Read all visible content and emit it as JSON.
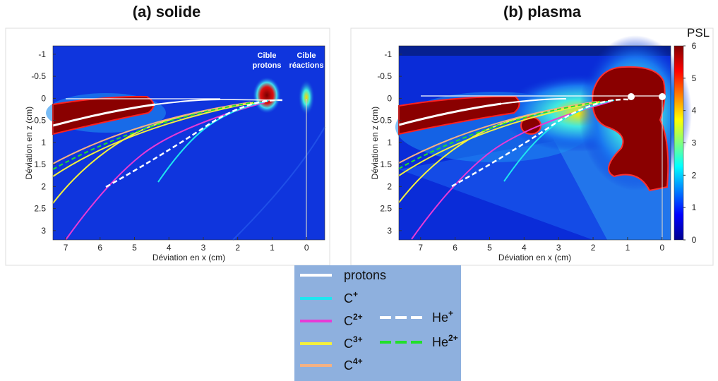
{
  "panels": [
    {
      "title": "(a) solide",
      "xlabel": "Déviation en x (cm)",
      "ylabel": "Déviation en z (cm)",
      "xlim": [
        7.37,
        -0.53
      ],
      "ylim": [
        -1.19,
        3.21
      ],
      "xticks": [
        7,
        6,
        5,
        4,
        3,
        2,
        1,
        0
      ],
      "yticks": [
        -1,
        -0.5,
        0,
        0.5,
        1,
        1.5,
        2,
        2.5,
        3
      ],
      "annotations": [
        [
          "Cible",
          "protons"
        ],
        [
          "Cible",
          "réactions"
        ]
      ]
    },
    {
      "title": "(b) plasma",
      "xlabel": "Déviation en x (cm)",
      "ylabel": "Déviation en z (cm)",
      "xlim": [
        7.63,
        -0.25
      ],
      "ylim": [
        -1.19,
        3.21
      ],
      "xticks": [
        7,
        6,
        5,
        4,
        3,
        2,
        1,
        0
      ],
      "yticks": [
        -1,
        -0.5,
        0,
        0.5,
        1,
        1.5,
        2,
        2.5,
        3
      ],
      "annotations": []
    }
  ],
  "colorbar": {
    "label": "PSL",
    "lim": [
      0,
      6
    ],
    "ticks": [
      0,
      1,
      2,
      3,
      4,
      5,
      6
    ]
  },
  "legend": [
    {
      "label": "protons",
      "color": "#ffffff",
      "dashed": false
    },
    {
      "label": "C",
      "charge": "+",
      "color": "#1ee6f0",
      "dashed": false
    },
    {
      "label": "C",
      "charge": "2+",
      "color": "#e83ad6",
      "dashed": false
    },
    {
      "label": "C",
      "charge": "3+",
      "color": "#f4f03c",
      "dashed": false
    },
    {
      "label": "C",
      "charge": "4+",
      "color": "#f4b183",
      "dashed": false
    },
    {
      "label": "He",
      "charge": "+",
      "color": "#ffffff",
      "dashed": true
    },
    {
      "label": "He",
      "charge": "2+",
      "color": "#22e02a",
      "dashed": true
    }
  ]
}
